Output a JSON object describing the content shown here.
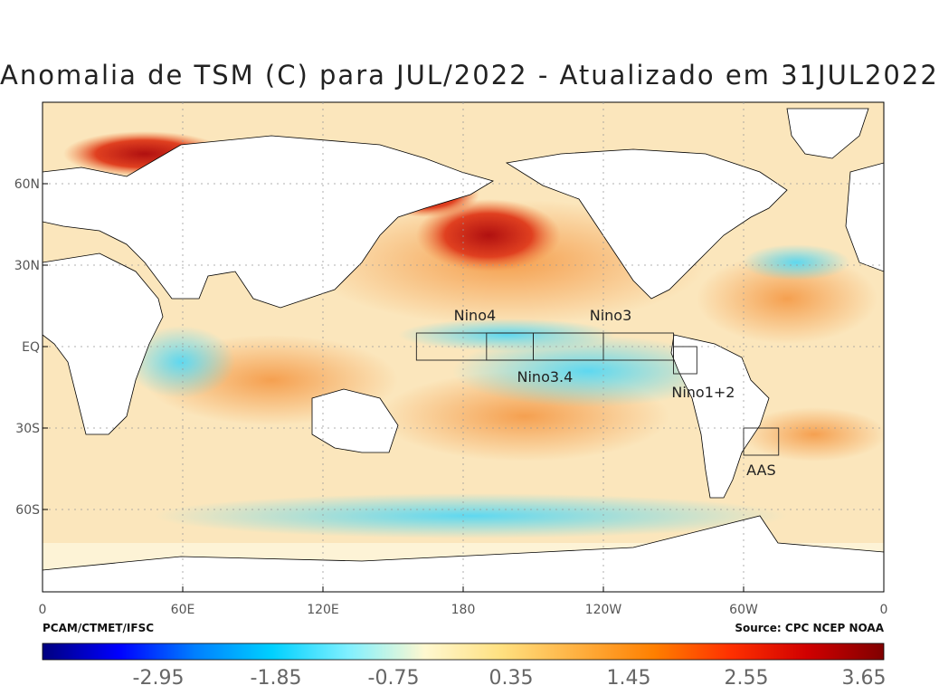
{
  "title": "Anomalia de TSM (C) para JUL/2022 - Atualizado em 31JUL2022",
  "credit_left": "PCAM/CTMET/IFSC",
  "credit_right": "Source: CPC NCEP NOAA",
  "map": {
    "lat_ticks": [
      {
        "lat": 60,
        "label": "60N"
      },
      {
        "lat": 30,
        "label": "30N"
      },
      {
        "lat": 0,
        "label": "EQ"
      },
      {
        "lat": -30,
        "label": "30S"
      },
      {
        "lat": -60,
        "label": "60S"
      }
    ],
    "lon_ticks": [
      {
        "lon": 0,
        "label": "0"
      },
      {
        "lon": 60,
        "label": "60E"
      },
      {
        "lon": 120,
        "label": "120E"
      },
      {
        "lon": 180,
        "label": "180"
      },
      {
        "lon": 240,
        "label": "120W"
      },
      {
        "lon": 300,
        "label": "60W"
      },
      {
        "lon": 360,
        "label": "0"
      }
    ],
    "regions": [
      {
        "label": "Nino4",
        "lon_min": 160,
        "lon_max": 210,
        "lat_min": -5,
        "lat_max": 5
      },
      {
        "label": "Nino3.4",
        "lon_min": 190,
        "lon_max": 240,
        "lat_min": -5,
        "lat_max": 5
      },
      {
        "label": "Nino3",
        "lon_min": 210,
        "lon_max": 270,
        "lat_min": -5,
        "lat_max": 5
      },
      {
        "label": "Nino1+2",
        "lon_min": 270,
        "lon_max": 280,
        "lat_min": -10,
        "lat_max": 0
      },
      {
        "label": "AAS",
        "lon_min": 300,
        "lon_max": 315,
        "lat_min": -40,
        "lat_max": -30
      }
    ]
  },
  "colorbar": {
    "ticks": [
      "-2.95",
      "-1.85",
      "-0.75",
      "0.35",
      "1.45",
      "2.55",
      "3.65"
    ],
    "colors": [
      "#00007f",
      "#0000ff",
      "#0080ff",
      "#00d0ff",
      "#80f0ff",
      "#fff8d0",
      "#ffe080",
      "#ffb040",
      "#ff7f00",
      "#ff3000",
      "#d00000",
      "#800000"
    ]
  },
  "colors": {
    "land": "#ffffff",
    "neutral": "#fdf3d6",
    "warm": "#f5a55a",
    "cold": "#6ee0f0"
  }
}
